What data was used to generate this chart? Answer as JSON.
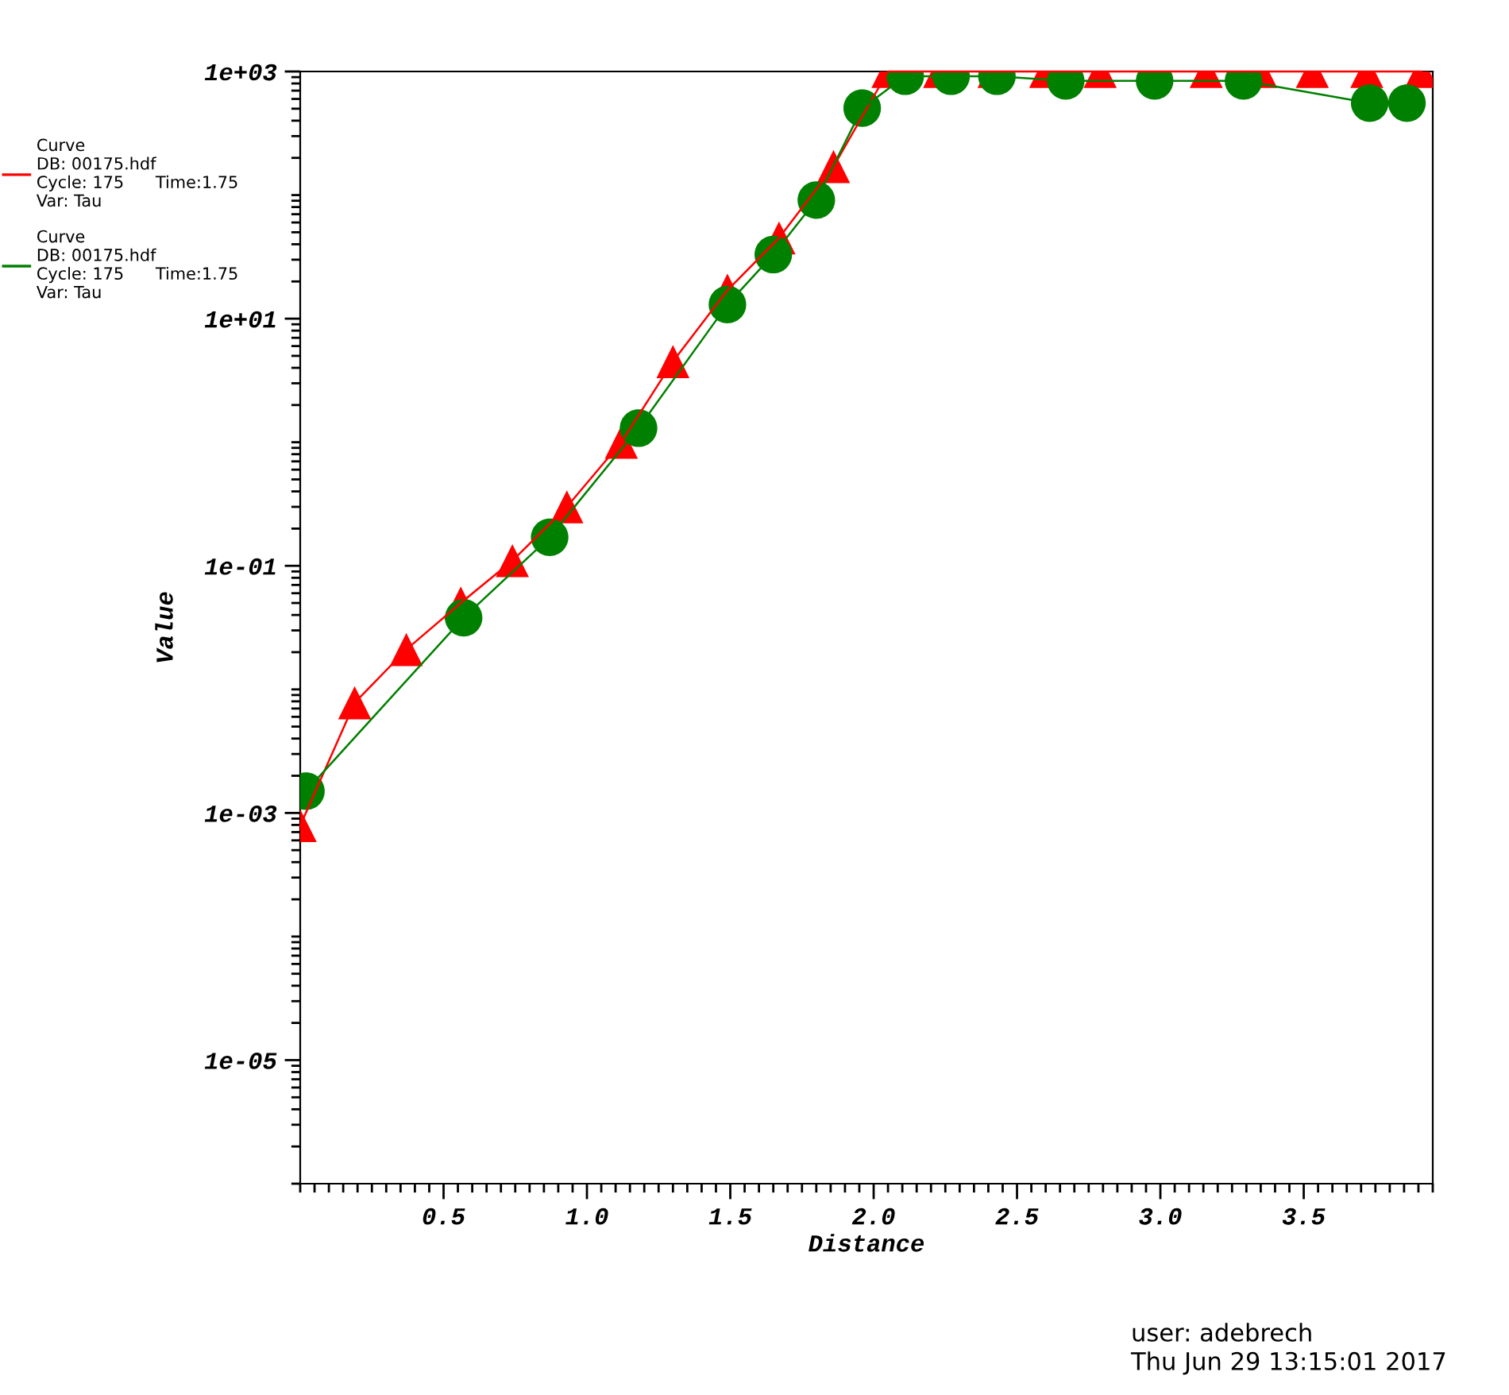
{
  "chart_data": {
    "type": "line",
    "xlabel": "Distance",
    "ylabel": "Value",
    "log": "y",
    "grid": false,
    "legend": "left",
    "xlim": [
      0,
      3.95
    ],
    "ylim": [
      1e-06,
      1000
    ],
    "xticks": [
      {
        "value": 0.5,
        "label": "0.5"
      },
      {
        "value": 1.0,
        "label": "1.0"
      },
      {
        "value": 1.5,
        "label": "1.5"
      },
      {
        "value": 2.0,
        "label": "2.0"
      },
      {
        "value": 2.5,
        "label": "2.5"
      },
      {
        "value": 3.0,
        "label": "3.0"
      },
      {
        "value": 3.5,
        "label": "3.5"
      }
    ],
    "yticks": [
      {
        "value": 1e-05,
        "label": "1e-05"
      },
      {
        "value": 0.001,
        "label": "1e-03"
      },
      {
        "value": 0.1,
        "label": "1e-01"
      },
      {
        "value": 10,
        "label": "1e+01"
      },
      {
        "value": 1000,
        "label": "1e+03"
      }
    ],
    "annotations": [
      "user: adebrech",
      "Thu Jun 29 13:15:01 2017"
    ],
    "series": [
      {
        "name": "Curve\nDB: 00175.hdf\nCycle: 175      Time:1.75\nVar: Tau",
        "color": "#ff0000",
        "marker": "triangle",
        "x": [
          0,
          0.19,
          0.37,
          0.56,
          0.74,
          0.93,
          1.12,
          1.3,
          1.49,
          1.67,
          1.86,
          2.05,
          2.23,
          2.42,
          2.6,
          2.79,
          2.98,
          3.16,
          3.35,
          3.53,
          3.72,
          3.91
        ],
        "values": [
          0.00079,
          0.0078,
          0.021,
          0.05,
          0.11,
          0.3,
          1.0,
          4.5,
          17,
          45,
          170,
          1000,
          1000,
          1000,
          1000,
          1000,
          1000,
          1000,
          1000,
          1000,
          1000,
          1000
        ]
      },
      {
        "name": "Curve\nDB: 00175.hdf\nCycle: 175      Time:1.75\nVar: Tau",
        "color": "#008000",
        "marker": "circle",
        "x": [
          0.02,
          0.57,
          0.87,
          1.18,
          1.49,
          1.65,
          1.8,
          1.96,
          2.11,
          2.27,
          2.43,
          2.67,
          2.98,
          3.29,
          3.73,
          3.86
        ],
        "values": [
          0.0015,
          0.038,
          0.17,
          1.3,
          13,
          33,
          91,
          505,
          915,
          915,
          915,
          840,
          840,
          840,
          555,
          555
        ]
      }
    ]
  }
}
